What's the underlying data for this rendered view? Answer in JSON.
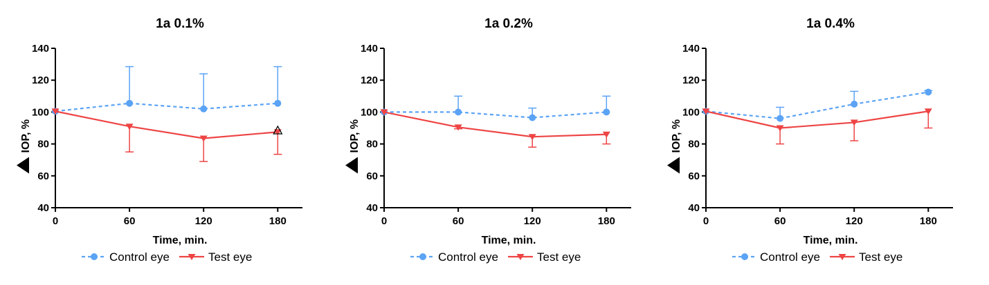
{
  "colors": {
    "control": "#5BA3F5",
    "test": "#EE4444"
  },
  "chart_data": [
    {
      "type": "line",
      "title": "1a 0.1%",
      "xlabel": "Time, min.",
      "ylabel": "IOP, %",
      "x": [
        0,
        60,
        120,
        180
      ],
      "xlim": [
        0,
        200
      ],
      "ylim": [
        40,
        140
      ],
      "xticks": [
        0,
        60,
        120,
        180
      ],
      "yticks": [
        40,
        60,
        80,
        100,
        120,
        140
      ],
      "series": [
        {
          "name": "Control eye",
          "values": [
            100.5,
            105.5,
            102,
            105.5
          ],
          "error": [
            0,
            23,
            22,
            23
          ]
        },
        {
          "name": "Test eye",
          "values": [
            100.5,
            91,
            83.5,
            87.5
          ],
          "error": [
            0,
            16,
            14.5,
            14
          ]
        }
      ],
      "annotation": {
        "x": 180,
        "y": 88.5,
        "text": "Δ"
      },
      "legend": "bottom"
    },
    {
      "type": "line",
      "title": "1a 0.2%",
      "xlabel": "Time, min.",
      "ylabel": "IOP, %",
      "x": [
        0,
        60,
        120,
        180
      ],
      "xlim": [
        0,
        200
      ],
      "ylim": [
        40,
        140
      ],
      "xticks": [
        0,
        60,
        120,
        180
      ],
      "yticks": [
        40,
        60,
        80,
        100,
        120,
        140
      ],
      "series": [
        {
          "name": "Control eye",
          "values": [
            100,
            100,
            96.5,
            100
          ],
          "error": [
            0,
            10,
            6,
            10
          ]
        },
        {
          "name": "Test eye",
          "values": [
            100,
            90.5,
            84.5,
            86
          ],
          "error": [
            0,
            1,
            6.5,
            6
          ]
        }
      ],
      "legend": "bottom"
    },
    {
      "type": "line",
      "title": "1a 0.4%",
      "xlabel": "Time, min.",
      "ylabel": "IOP, %",
      "x": [
        0,
        60,
        120,
        180
      ],
      "xlim": [
        0,
        200
      ],
      "ylim": [
        40,
        140
      ],
      "xticks": [
        0,
        60,
        120,
        180
      ],
      "yticks": [
        40,
        60,
        80,
        100,
        120,
        140
      ],
      "series": [
        {
          "name": "Control eye",
          "values": [
            100.5,
            96,
            105,
            112.5
          ],
          "error": [
            0,
            7,
            8,
            1
          ]
        },
        {
          "name": "Test eye",
          "values": [
            100.5,
            90,
            93.5,
            100.5
          ],
          "error": [
            0,
            10,
            11.5,
            10.5
          ]
        }
      ],
      "legend": "bottom"
    }
  ]
}
